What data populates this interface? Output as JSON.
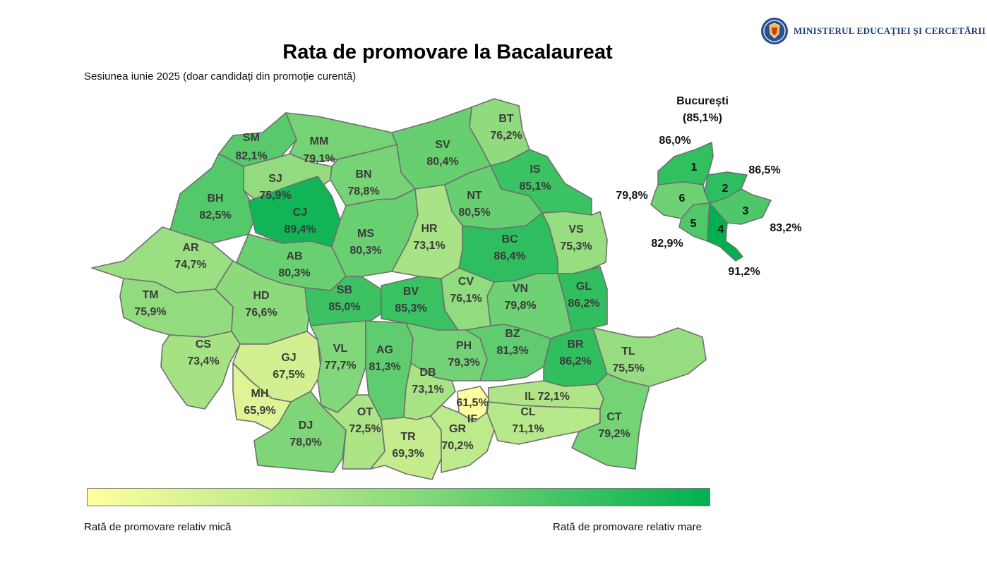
{
  "title": "Rata de promovare la Bacalaureat",
  "subtitle": "Sesiunea iunie 2025 (doar candidați din promoție curentă)",
  "header": {
    "ministry": "MINISTERUL EDUCAȚIEI ȘI CERCETĂRII"
  },
  "colors": {
    "low": "#ffff9e",
    "mid": "#8fdb7e",
    "high": "#00b050",
    "border": "#6f6f6f"
  },
  "scale": {
    "min": 61.5,
    "max": 91.2
  },
  "legend": {
    "low_label": "Rată de promovare relativ mică",
    "high_label": "Rată de promovare relativ mare"
  },
  "counties": [
    {
      "code": "SM",
      "value": 82.1,
      "label": "82,1%"
    },
    {
      "code": "MM",
      "value": 79.1,
      "label": "79,1%"
    },
    {
      "code": "BT",
      "value": 76.2,
      "label": "76,2%"
    },
    {
      "code": "SV",
      "value": 80.4,
      "label": "80,4%"
    },
    {
      "code": "SJ",
      "value": 75.9,
      "label": "75,9%"
    },
    {
      "code": "BN",
      "value": 78.8,
      "label": "78,8%"
    },
    {
      "code": "IS",
      "value": 85.1,
      "label": "85,1%"
    },
    {
      "code": "BH",
      "value": 82.5,
      "label": "82,5%"
    },
    {
      "code": "CJ",
      "value": 89.4,
      "label": "89,4%"
    },
    {
      "code": "NT",
      "value": 80.5,
      "label": "80,5%"
    },
    {
      "code": "AR",
      "value": 74.7,
      "label": "74,7%"
    },
    {
      "code": "AB",
      "value": 80.3,
      "label": "80,3%"
    },
    {
      "code": "MS",
      "value": 80.3,
      "label": "80,3%"
    },
    {
      "code": "HR",
      "value": 73.1,
      "label": "73,1%"
    },
    {
      "code": "BC",
      "value": 86.4,
      "label": "86,4%"
    },
    {
      "code": "VS",
      "value": 75.3,
      "label": "75,3%"
    },
    {
      "code": "TM",
      "value": 75.9,
      "label": "75,9%"
    },
    {
      "code": "HD",
      "value": 76.6,
      "label": "76,6%"
    },
    {
      "code": "SB",
      "value": 85.0,
      "label": "85,0%"
    },
    {
      "code": "BV",
      "value": 85.3,
      "label": "85,3%"
    },
    {
      "code": "CV",
      "value": 76.1,
      "label": "76,1%"
    },
    {
      "code": "VN",
      "value": 79.8,
      "label": "79,8%"
    },
    {
      "code": "GL",
      "value": 86.2,
      "label": "86,2%"
    },
    {
      "code": "CS",
      "value": 73.4,
      "label": "73,4%"
    },
    {
      "code": "GJ",
      "value": 67.5,
      "label": "67,5%"
    },
    {
      "code": "VL",
      "value": 77.7,
      "label": "77,7%"
    },
    {
      "code": "AG",
      "value": 81.3,
      "label": "81,3%"
    },
    {
      "code": "PH",
      "value": 79.3,
      "label": "79,3%"
    },
    {
      "code": "BZ",
      "value": 81.3,
      "label": "81,3%"
    },
    {
      "code": "BR",
      "value": 86.2,
      "label": "86,2%"
    },
    {
      "code": "TL",
      "value": 75.5,
      "label": "75,5%"
    },
    {
      "code": "MH",
      "value": 65.9,
      "label": "65,9%"
    },
    {
      "code": "DJ",
      "value": 78.0,
      "label": "78,0%"
    },
    {
      "code": "OT",
      "value": 72.5,
      "label": "72,5%"
    },
    {
      "code": "DB",
      "value": 73.1,
      "label": "73,1%"
    },
    {
      "code": "IF",
      "value": 61.5,
      "label": "61,5%"
    },
    {
      "code": "IL",
      "value": 72.1,
      "label": "72,1%"
    },
    {
      "code": "TR",
      "value": 69.3,
      "label": "69,3%"
    },
    {
      "code": "GR",
      "value": 70.2,
      "label": "70,2%"
    },
    {
      "code": "CL",
      "value": 71.1,
      "label": "71,1%"
    },
    {
      "code": "CT",
      "value": 79.2,
      "label": "79,2%"
    }
  ],
  "bucharest": {
    "name": "București",
    "total_label": "(85,1%)",
    "sectors": [
      {
        "number": "1",
        "value": 86.0,
        "label": "86,0%"
      },
      {
        "number": "2",
        "value": 86.5,
        "label": "86,5%"
      },
      {
        "number": "3",
        "value": 83.2,
        "label": "83,2%"
      },
      {
        "number": "4",
        "value": 91.2,
        "label": "91,2%"
      },
      {
        "number": "5",
        "value": 82.9,
        "label": "82,9%"
      },
      {
        "number": "6",
        "value": 79.8,
        "label": "79,8%"
      }
    ]
  }
}
